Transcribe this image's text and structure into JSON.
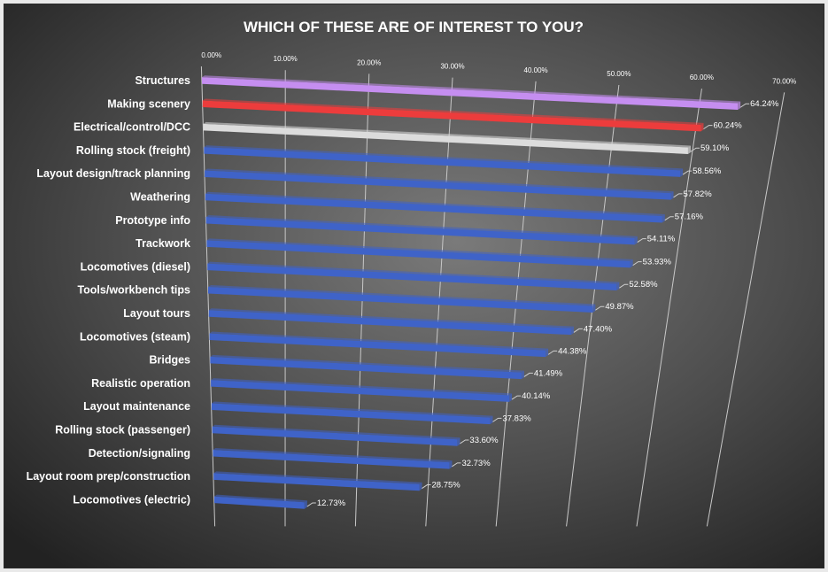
{
  "chart_data": {
    "type": "bar",
    "orientation": "horizontal",
    "title": "WHICH OF THESE ARE OF INTEREST TO  YOU?",
    "xlabel": "",
    "ylabel": "",
    "xlim": [
      0,
      70
    ],
    "x_ticks": [
      "0.00%",
      "10.00%",
      "20.00%",
      "30.00%",
      "40.00%",
      "50.00%",
      "60.00%",
      "70.00%"
    ],
    "grid": true,
    "legend": "none",
    "categories": [
      "Structures",
      "Making scenery",
      "Electrical/control/DCC",
      "Rolling stock (freight)",
      "Layout design/track planning",
      "Weathering",
      "Prototype info",
      "Trackwork",
      "Locomotives (diesel)",
      "Tools/workbench tips",
      "Layout tours",
      "Locomotives (steam)",
      "Bridges",
      "Realistic operation",
      "Layout maintenance",
      "Rolling stock (passenger)",
      "Detection/signaling",
      "Layout room prep/construction",
      "Locomotives (electric)"
    ],
    "values": [
      64.24,
      60.24,
      59.1,
      58.56,
      57.82,
      57.16,
      54.11,
      53.93,
      52.58,
      49.87,
      47.4,
      44.38,
      41.49,
      40.14,
      37.83,
      33.6,
      32.73,
      28.75,
      12.73
    ],
    "value_labels": [
      "64.24%",
      "60.24%",
      "59.10%",
      "58.56%",
      "57.82%",
      "57.16%",
      "54.11%",
      "53.93%",
      "52.58%",
      "49.87%",
      "47.40%",
      "44.38%",
      "41.49%",
      "40.14%",
      "37.83%",
      "33.60%",
      "32.73%",
      "28.75%",
      "12.73%"
    ],
    "bar_colors": [
      "#c58ef0",
      "#ec3c3c",
      "#dcdcdc",
      "#3f63c8",
      "#3f63c8",
      "#3f63c8",
      "#3f63c8",
      "#3f63c8",
      "#3f63c8",
      "#3f63c8",
      "#3f63c8",
      "#3f63c8",
      "#3f63c8",
      "#3f63c8",
      "#3f63c8",
      "#3f63c8",
      "#3f63c8",
      "#3f63c8",
      "#3f63c8"
    ]
  }
}
